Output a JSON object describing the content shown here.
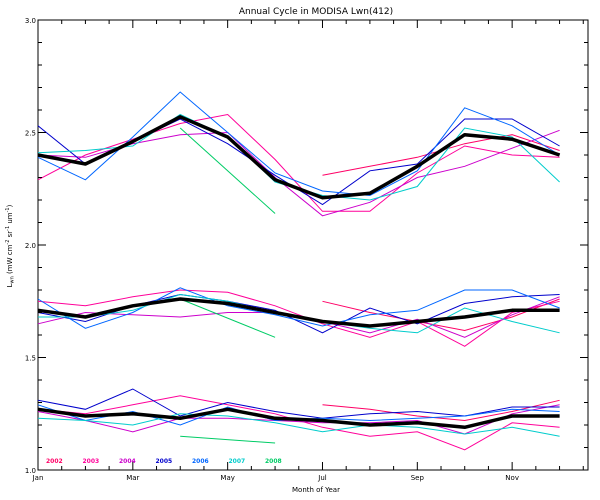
{
  "chart_data": {
    "type": "line",
    "title": "Annual Cycle in MODISA Lwn(412)",
    "xlabel": "Month of Year",
    "ylabel": "L",
    "ylabel_sub": "wn",
    "ylabel_rest": " (mW cm",
    "ylabel_exp1": "-2",
    "ylabel_sr": " sr",
    "ylabel_exp2": "-1",
    "ylabel_um": " um",
    "ylabel_exp3": "-1",
    "ylabel_close": ")",
    "xlim": [
      1,
      12.6
    ],
    "ylim": [
      1.0,
      3.0
    ],
    "x_ticks": [
      {
        "x": 1,
        "label": "Jan"
      },
      {
        "x": 3,
        "label": "Mar"
      },
      {
        "x": 5,
        "label": "May"
      },
      {
        "x": 7,
        "label": "Jul"
      },
      {
        "x": 9,
        "label": "Sep"
      },
      {
        "x": 11,
        "label": "Nov"
      }
    ],
    "y_ticks": [
      {
        "y": 1.0,
        "label": "1.0"
      },
      {
        "y": 1.5,
        "label": "1.5"
      },
      {
        "y": 2.0,
        "label": "2.0"
      },
      {
        "y": 2.5,
        "label": "2.5"
      },
      {
        "y": 3.0,
        "label": "3.0"
      }
    ],
    "grid": false,
    "legend_position": "bottom-left",
    "series": [
      {
        "name": "2002",
        "color": "#ff0066",
        "groups": [
          {
            "x": [
              7.0,
              8.0,
              9.0,
              10.0,
              11.0,
              12.0
            ],
            "y": [
              2.31,
              2.35,
              2.39,
              2.45,
              2.49,
              2.42
            ]
          },
          {
            "x": [
              7.0,
              8.0,
              9.0,
              10.0,
              11.0,
              12.0
            ],
            "y": [
              1.75,
              1.7,
              1.66,
              1.62,
              1.68,
              1.76
            ]
          },
          {
            "x": [
              7.0,
              8.0,
              9.0,
              10.0,
              11.0,
              12.0
            ],
            "y": [
              1.29,
              1.27,
              1.24,
              1.22,
              1.26,
              1.31
            ]
          }
        ]
      },
      {
        "name": "2003",
        "color": "#ff0099",
        "groups": [
          {
            "x": [
              1.0,
              2.0,
              3.0,
              4.0,
              5.0,
              6.0,
              7.0,
              8.0,
              9.0,
              10.0,
              11.0,
              12.0
            ],
            "y": [
              2.29,
              2.4,
              2.47,
              2.54,
              2.58,
              2.38,
              2.15,
              2.15,
              2.32,
              2.44,
              2.4,
              2.39
            ]
          },
          {
            "x": [
              1.0,
              2.0,
              3.0,
              4.0,
              5.0,
              6.0,
              7.0,
              8.0,
              9.0,
              10.0,
              11.0,
              12.0
            ],
            "y": [
              1.75,
              1.73,
              1.77,
              1.8,
              1.79,
              1.73,
              1.65,
              1.59,
              1.66,
              1.55,
              1.7,
              1.75
            ]
          },
          {
            "x": [
              1.0,
              2.0,
              3.0,
              4.0,
              5.0,
              6.0,
              7.0,
              8.0,
              9.0,
              10.0,
              11.0,
              12.0
            ],
            "y": [
              1.27,
              1.25,
              1.29,
              1.33,
              1.29,
              1.25,
              1.19,
              1.15,
              1.17,
              1.09,
              1.21,
              1.19
            ]
          }
        ]
      },
      {
        "name": "2004",
        "color": "#cc00cc",
        "groups": [
          {
            "x": [
              1.0,
              2.0,
              3.0,
              4.0,
              5.0,
              6.0,
              7.0,
              8.0,
              9.0,
              10.0,
              11.0,
              12.0
            ],
            "y": [
              2.4,
              2.39,
              2.45,
              2.49,
              2.5,
              2.3,
              2.13,
              2.19,
              2.3,
              2.35,
              2.43,
              2.51
            ]
          },
          {
            "x": [
              1.0,
              2.0,
              3.0,
              4.0,
              5.0,
              6.0,
              7.0,
              8.0,
              9.0,
              10.0,
              11.0,
              12.0
            ],
            "y": [
              1.65,
              1.7,
              1.69,
              1.68,
              1.7,
              1.7,
              1.66,
              1.61,
              1.67,
              1.59,
              1.69,
              1.77
            ]
          },
          {
            "x": [
              1.0,
              2.0,
              3.0,
              4.0,
              5.0,
              6.0,
              7.0,
              8.0,
              9.0,
              10.0,
              11.0,
              12.0
            ],
            "y": [
              1.26,
              1.22,
              1.17,
              1.23,
              1.23,
              1.22,
              1.21,
              1.21,
              1.22,
              1.16,
              1.25,
              1.29
            ]
          }
        ]
      },
      {
        "name": "2005",
        "color": "#0000cc",
        "groups": [
          {
            "x": [
              1.0,
              2.0,
              3.0,
              4.0,
              5.0,
              6.0,
              7.0,
              8.0,
              9.0,
              10.0,
              11.0,
              12.0
            ],
            "y": [
              2.53,
              2.36,
              2.46,
              2.56,
              2.45,
              2.31,
              2.18,
              2.33,
              2.36,
              2.56,
              2.56,
              2.44
            ]
          },
          {
            "x": [
              1.0,
              2.0,
              3.0,
              4.0,
              5.0,
              6.0,
              7.0,
              8.0,
              9.0,
              10.0,
              11.0,
              12.0
            ],
            "y": [
              1.7,
              1.66,
              1.73,
              1.78,
              1.75,
              1.71,
              1.61,
              1.72,
              1.65,
              1.74,
              1.77,
              1.78
            ]
          },
          {
            "x": [
              1.0,
              2.0,
              3.0,
              4.0,
              5.0,
              6.0,
              7.0,
              8.0,
              9.0,
              10.0,
              11.0,
              12.0
            ],
            "y": [
              1.31,
              1.27,
              1.36,
              1.24,
              1.3,
              1.26,
              1.23,
              1.25,
              1.26,
              1.24,
              1.28,
              1.28
            ]
          }
        ]
      },
      {
        "name": "2006",
        "color": "#0066ff",
        "groups": [
          {
            "x": [
              1.0,
              2.0,
              3.0,
              4.0,
              5.0,
              6.0,
              7.0,
              8.0,
              9.0,
              10.0,
              11.0,
              12.0
            ],
            "y": [
              2.39,
              2.29,
              2.48,
              2.68,
              2.5,
              2.32,
              2.24,
              2.22,
              2.33,
              2.61,
              2.53,
              2.4
            ]
          },
          {
            "x": [
              1.0,
              2.0,
              3.0,
              4.0,
              5.0,
              6.0,
              7.0,
              8.0,
              9.0,
              10.0,
              11.0,
              12.0
            ],
            "y": [
              1.76,
              1.63,
              1.7,
              1.81,
              1.73,
              1.69,
              1.64,
              1.69,
              1.71,
              1.8,
              1.8,
              1.72
            ]
          },
          {
            "x": [
              1.0,
              2.0,
              3.0,
              4.0,
              5.0,
              6.0,
              7.0,
              8.0,
              9.0,
              10.0,
              11.0,
              12.0
            ],
            "y": [
              1.29,
              1.22,
              1.26,
              1.2,
              1.28,
              1.22,
              1.23,
              1.22,
              1.23,
              1.24,
              1.27,
              1.26
            ]
          }
        ]
      },
      {
        "name": "2007",
        "color": "#00cccc",
        "groups": [
          {
            "x": [
              1.0,
              2.0,
              3.0,
              4.0,
              5.0,
              6.0,
              7.0,
              8.0,
              9.0,
              10.0,
              11.0,
              12.0
            ],
            "y": [
              2.41,
              2.42,
              2.44,
              2.58,
              2.48,
              2.28,
              2.22,
              2.2,
              2.26,
              2.52,
              2.48,
              2.28
            ]
          },
          {
            "x": [
              1.0,
              2.0,
              3.0,
              4.0,
              5.0,
              6.0,
              7.0,
              8.0,
              9.0,
              10.0,
              11.0,
              12.0
            ],
            "y": [
              1.68,
              1.68,
              1.71,
              1.78,
              1.75,
              1.7,
              1.66,
              1.63,
              1.61,
              1.72,
              1.66,
              1.61
            ]
          },
          {
            "x": [
              1.0,
              2.0,
              3.0,
              4.0,
              5.0,
              6.0,
              7.0,
              8.0,
              9.0,
              10.0,
              11.0,
              12.0
            ],
            "y": [
              1.23,
              1.22,
              1.2,
              1.25,
              1.24,
              1.21,
              1.17,
              1.2,
              1.19,
              1.16,
              1.19,
              1.15
            ]
          }
        ]
      },
      {
        "name": "2008",
        "color": "#00cc66",
        "groups": [
          {
            "x": [
              4.0,
              6.0
            ],
            "y": [
              2.52,
              2.14
            ]
          },
          {
            "x": [
              4.0,
              6.0
            ],
            "y": [
              1.76,
              1.59
            ]
          },
          {
            "x": [
              4.0,
              6.0
            ],
            "y": [
              1.15,
              1.12
            ]
          }
        ]
      }
    ],
    "mean": [
      {
        "x": [
          1.0,
          2.0,
          3.0,
          4.0,
          5.0,
          6.0,
          7.0,
          8.0,
          9.0,
          10.0,
          11.0,
          12.0
        ],
        "y": [
          2.4,
          2.36,
          2.46,
          2.57,
          2.48,
          2.29,
          2.21,
          2.23,
          2.35,
          2.49,
          2.47,
          2.4
        ]
      },
      {
        "x": [
          1.0,
          2.0,
          3.0,
          4.0,
          5.0,
          6.0,
          7.0,
          8.0,
          9.0,
          10.0,
          11.0,
          12.0
        ],
        "y": [
          1.71,
          1.68,
          1.73,
          1.76,
          1.74,
          1.7,
          1.66,
          1.64,
          1.66,
          1.68,
          1.71,
          1.71
        ]
      },
      {
        "x": [
          1.0,
          2.0,
          3.0,
          4.0,
          5.0,
          6.0,
          7.0,
          8.0,
          9.0,
          10.0,
          11.0,
          12.0
        ],
        "y": [
          1.27,
          1.24,
          1.25,
          1.23,
          1.27,
          1.23,
          1.22,
          1.2,
          1.21,
          1.19,
          1.24,
          1.24
        ]
      }
    ],
    "mean_color": "#000000"
  }
}
